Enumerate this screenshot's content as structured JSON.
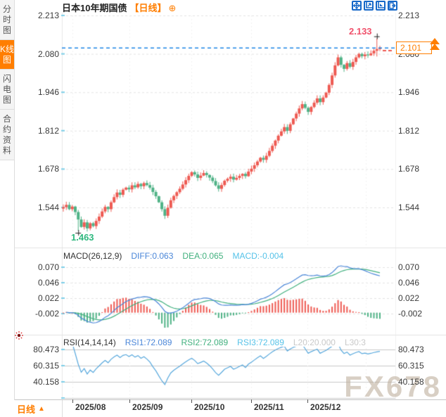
{
  "header": {
    "title": "日本10年期国债",
    "period_tag": "【日线】",
    "add_icon": "⊕",
    "toolbar": [
      {
        "name": "crosshair-icon"
      },
      {
        "name": "fit-axis-icon"
      },
      {
        "name": "scale-axis-icon"
      },
      {
        "name": "exit-chart-icon"
      }
    ]
  },
  "sidebar": {
    "tabs": [
      {
        "label": "分时图",
        "active": false
      },
      {
        "label": "K线图",
        "active": true
      },
      {
        "label": "闪电图",
        "active": false
      },
      {
        "label": "合约资料",
        "active": false
      }
    ]
  },
  "main_chart": {
    "y_axis_labels": [
      "2.213",
      "2.080",
      "1.946",
      "1.812",
      "1.678",
      "1.544"
    ],
    "high_label": "2.133",
    "low_label": "1.463",
    "last_price_label": "2.101"
  },
  "macd": {
    "title": "MACD(26,12,9)",
    "diff_label": "DIFF:0.063",
    "dea_label": "DEA:0.065",
    "macd_label": "MACD:-0.004",
    "y_axis_labels": [
      "0.070",
      "0.046",
      "0.022",
      "-0.002"
    ]
  },
  "rsi": {
    "title": "RSI(14,14,14)",
    "rsi1_label": "RSI1:72.089",
    "rsi2_label": "RSI2:72.089",
    "rsi3_label": "RSI3:72.089",
    "l20_label": "L20:20.000",
    "l30_label": "L30:3",
    "y_axis_labels": [
      "80.473",
      "60.315",
      "40.158"
    ]
  },
  "x_axis": {
    "period_label": "日线",
    "period_arrow": "▲",
    "months": [
      "2025/08",
      "2025/09",
      "2025/10",
      "2025/11",
      "2025/12"
    ]
  },
  "watermark": "FX678",
  "colors": {
    "up": "#ee5a52",
    "down": "#4fb286",
    "accent_orange": "#ff7e00",
    "diff_blue": "#4a86d8",
    "dea_green": "#41b07e",
    "macd_cyan": "#55c2e8",
    "rsi_blue": "#56a7dc",
    "dashed_blue": "#1e86e6",
    "grid": "#e3e3e3",
    "rsi_grid": "#c8c8c8"
  },
  "chart_data": {
    "type": "candlestick",
    "symbol": "日本10年期国债",
    "period": "日线",
    "y_axis": [
      2.213,
      2.08,
      1.946,
      1.812,
      1.678,
      1.544
    ],
    "months": [
      "2025/08",
      "2025/09",
      "2025/10",
      "2025/11",
      "2025/12"
    ],
    "first_open": 1.54,
    "closes": [
      1.545,
      1.553,
      1.538,
      1.547,
      1.528,
      1.502,
      1.476,
      1.492,
      1.471,
      1.489,
      1.479,
      1.497,
      1.512,
      1.53,
      1.546,
      1.538,
      1.562,
      1.58,
      1.596,
      1.588,
      1.606,
      1.613,
      1.607,
      1.621,
      1.614,
      1.626,
      1.618,
      1.629,
      1.622,
      1.613,
      1.598,
      1.583,
      1.562,
      1.538,
      1.515,
      1.543,
      1.569,
      1.584,
      1.597,
      1.609,
      1.624,
      1.639,
      1.654,
      1.667,
      1.659,
      1.647,
      1.655,
      1.664,
      1.657,
      1.648,
      1.636,
      1.621,
      1.609,
      1.622,
      1.637,
      1.644,
      1.651,
      1.641,
      1.647,
      1.654,
      1.661,
      1.653,
      1.669,
      1.679,
      1.691,
      1.704,
      1.717,
      1.71,
      1.724,
      1.741,
      1.759,
      1.777,
      1.794,
      1.809,
      1.824,
      1.811,
      1.834,
      1.854,
      1.871,
      1.889,
      1.904,
      1.891,
      1.877,
      1.894,
      1.909,
      1.924,
      1.911,
      1.927,
      1.944,
      1.971,
      2.004,
      2.039,
      2.067,
      2.041,
      2.027,
      2.047,
      2.034,
      2.051,
      2.067,
      2.079,
      2.071,
      2.077,
      2.074,
      2.081,
      2.09,
      2.096,
      2.101
    ],
    "low_point": {
      "index": 5,
      "value": 1.463
    },
    "high_point": {
      "index": 105,
      "high": 2.133,
      "low": 2.07
    },
    "last_price": 2.101,
    "macd_params": [
      26,
      12,
      9
    ],
    "macd_values": {
      "diff": 0.063,
      "dea": 0.065,
      "macd": -0.004
    },
    "macd_axis": [
      0.07,
      0.046,
      0.022,
      -0.002
    ],
    "rsi_params": [
      14,
      14,
      14
    ],
    "rsi_values": {
      "rsi1": 72.089,
      "rsi2": 72.089,
      "rsi3": 72.089,
      "l20": 20.0
    },
    "rsi_axis": [
      80.473,
      60.315,
      40.158
    ]
  }
}
